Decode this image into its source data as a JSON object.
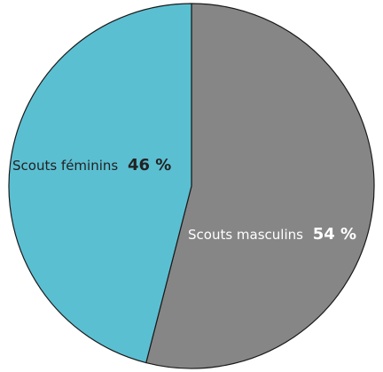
{
  "chart_data": {
    "type": "pie",
    "title": "",
    "slices": [
      {
        "name": "Scouts masculins",
        "value": 54,
        "value_label": "54 %",
        "color": "#868686",
        "label_color": "#ffffff"
      },
      {
        "name": "Scouts féminins",
        "value": 46,
        "value_label": "46 %",
        "color": "#5bbfd2",
        "label_color": "#222222"
      }
    ],
    "start": "12 o'clock",
    "direction": "clockwise",
    "outline_color": "#1a1a1a",
    "legend": "none"
  }
}
